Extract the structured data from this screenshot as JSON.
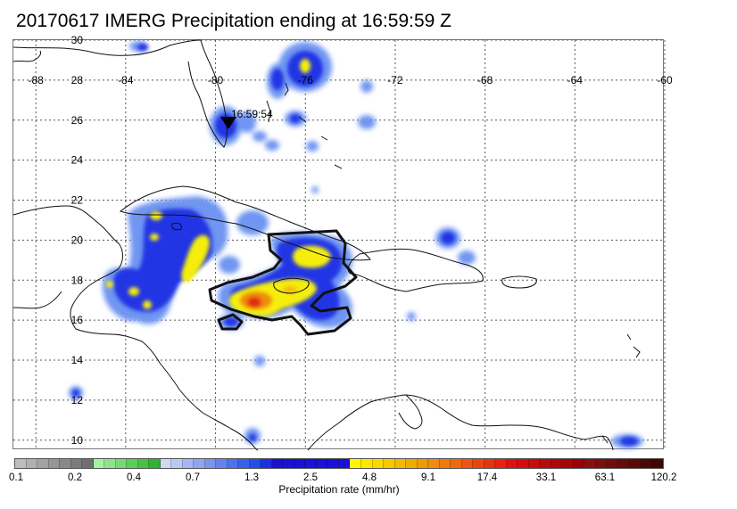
{
  "title": "20170617 IMERG Precipitation ending at 16:59:59 Z",
  "map": {
    "lon_range": [
      -89,
      -60
    ],
    "lat_range": [
      9.5,
      30
    ],
    "lon_ticks": [
      "-88",
      "-84",
      "-80",
      "-76",
      "-72",
      "-68",
      "-64",
      "-60"
    ],
    "lat_ticks": [
      "30",
      "28",
      "26",
      "24",
      "22",
      "20",
      "18",
      "16",
      "14",
      "12",
      "10"
    ],
    "gridlines": "dotted",
    "overpass_marker": {
      "label": "16:59:54",
      "symbol": "downward-triangle"
    },
    "precip_colors": {
      "light_blue": "#5a8df0",
      "blue": "#2a30e0",
      "yellow": "#f5ee10",
      "orange": "#f08a10",
      "red": "#e02a10"
    }
  },
  "colorbar": {
    "title": "Precipitation rate (mm/hr)",
    "tick_labels": [
      "0.1",
      "0.2",
      "0.4",
      "0.7",
      "1.3",
      "2.5",
      "4.8",
      "9.1",
      "17.4",
      "33.1",
      "63.1",
      "120.2"
    ],
    "colors": [
      "#bdbdbd",
      "#b0b0b0",
      "#a3a3a3",
      "#969696",
      "#898989",
      "#7c7c7c",
      "#6f6f6f",
      "#a6f0a6",
      "#8ee48e",
      "#76d876",
      "#5ecc5e",
      "#46c046",
      "#2eb42e",
      "#d2d8f7",
      "#bcc7f5",
      "#a6b6f3",
      "#90a5f1",
      "#7a94ef",
      "#6483ed",
      "#4e72eb",
      "#3861e9",
      "#2250e7",
      "#1f2fe2",
      "#1a10d8",
      "#1a10d8",
      "#1a10d8",
      "#1a10d8",
      "#1a10d8",
      "#1a10d8",
      "#1a10d8",
      "#fff700",
      "#fce800",
      "#f9d900",
      "#f6ca00",
      "#f3bb00",
      "#f0ac00",
      "#ed9d00",
      "#f08c10",
      "#ef7a10",
      "#ee6810",
      "#ed5610",
      "#ec4410",
      "#eb3210",
      "#ea2010",
      "#e01010",
      "#d40e0e",
      "#c80c0c",
      "#bc0a0a",
      "#b00808",
      "#a40606",
      "#980404",
      "#8a1010",
      "#7e0e0e",
      "#720c0c",
      "#660a0a",
      "#5a0808",
      "#4e0606",
      "#420404"
    ]
  }
}
